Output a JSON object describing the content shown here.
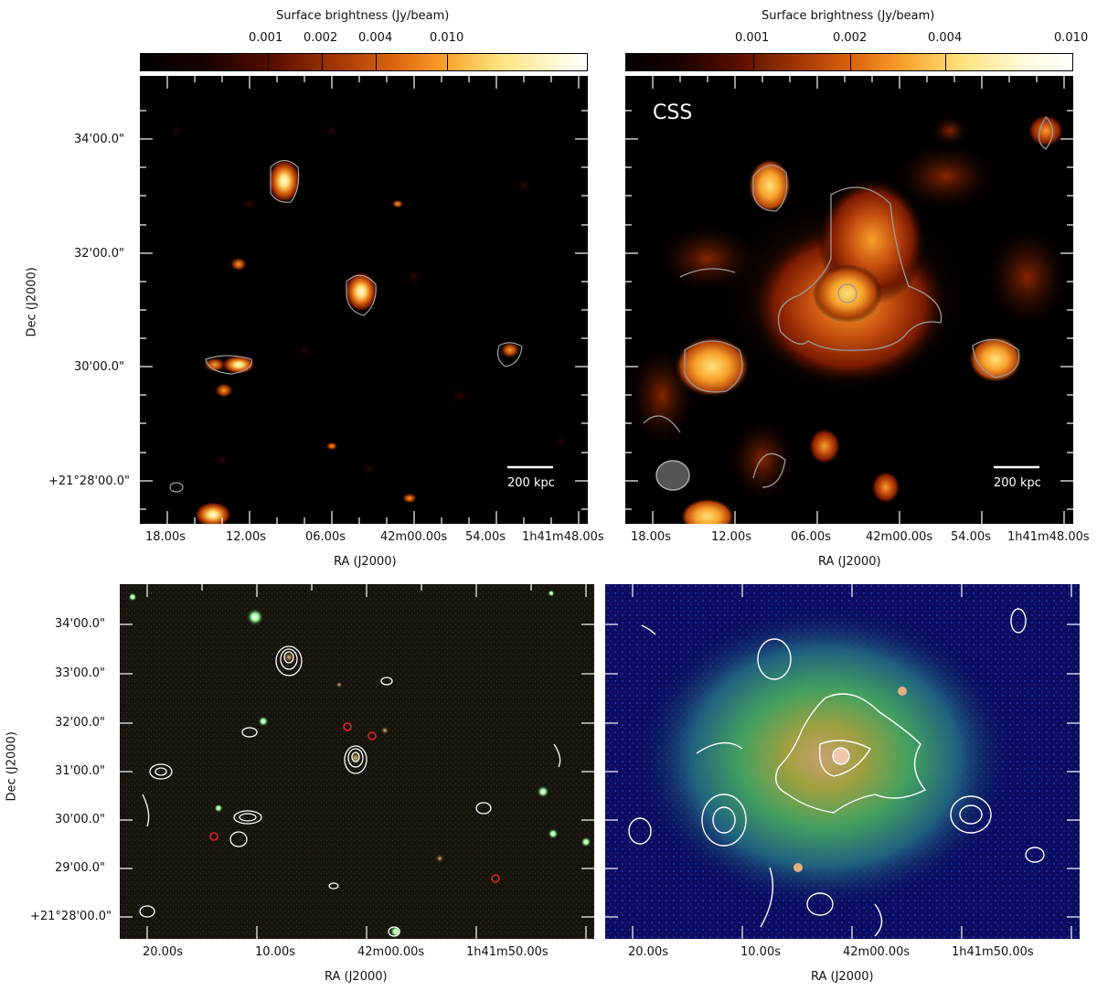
{
  "colorbars": [
    {
      "title": "Surface brightness (Jy/beam)",
      "ticks": [
        "0.001",
        "0.002",
        "0.004",
        "0.010"
      ],
      "tick_fracs": [
        0.28,
        0.4,
        0.525,
        0.69
      ]
    },
    {
      "title": "Surface brightness (Jy/beam)",
      "ticks": [
        "0.001",
        "0.002",
        "0.004",
        "0.010"
      ],
      "tick_fracs": [
        0.285,
        0.5,
        0.715,
        1.0
      ]
    }
  ],
  "top_panels": {
    "ra_ticks": [
      "18.00s",
      "12.00s",
      "06.00s",
      "42m00.00s",
      "54.00s",
      "1h41m48.00s"
    ],
    "dec_ticks": [
      "34'00.0\"",
      "32'00.0\"",
      "30'00.0\"",
      "+21°28'00.0\""
    ],
    "xlabel": "RA (J2000)",
    "ylabel": "Dec (J2000)",
    "scalebar": "200 kpc",
    "panel_label_right": "CSS"
  },
  "bottom_panels": {
    "ra_ticks": [
      "20.00s",
      "10.00s",
      "42m00.00s",
      "1h41m50.00s"
    ],
    "dec_ticks": [
      "34'00.0\"",
      "33'00.0\"",
      "32'00.0\"",
      "31'00.0\"",
      "30'00.0\"",
      "29'00.0\"",
      "+21°28'00.0\""
    ],
    "xlabel": "RA (J2000)",
    "ylabel": "Dec (J2000)"
  }
}
